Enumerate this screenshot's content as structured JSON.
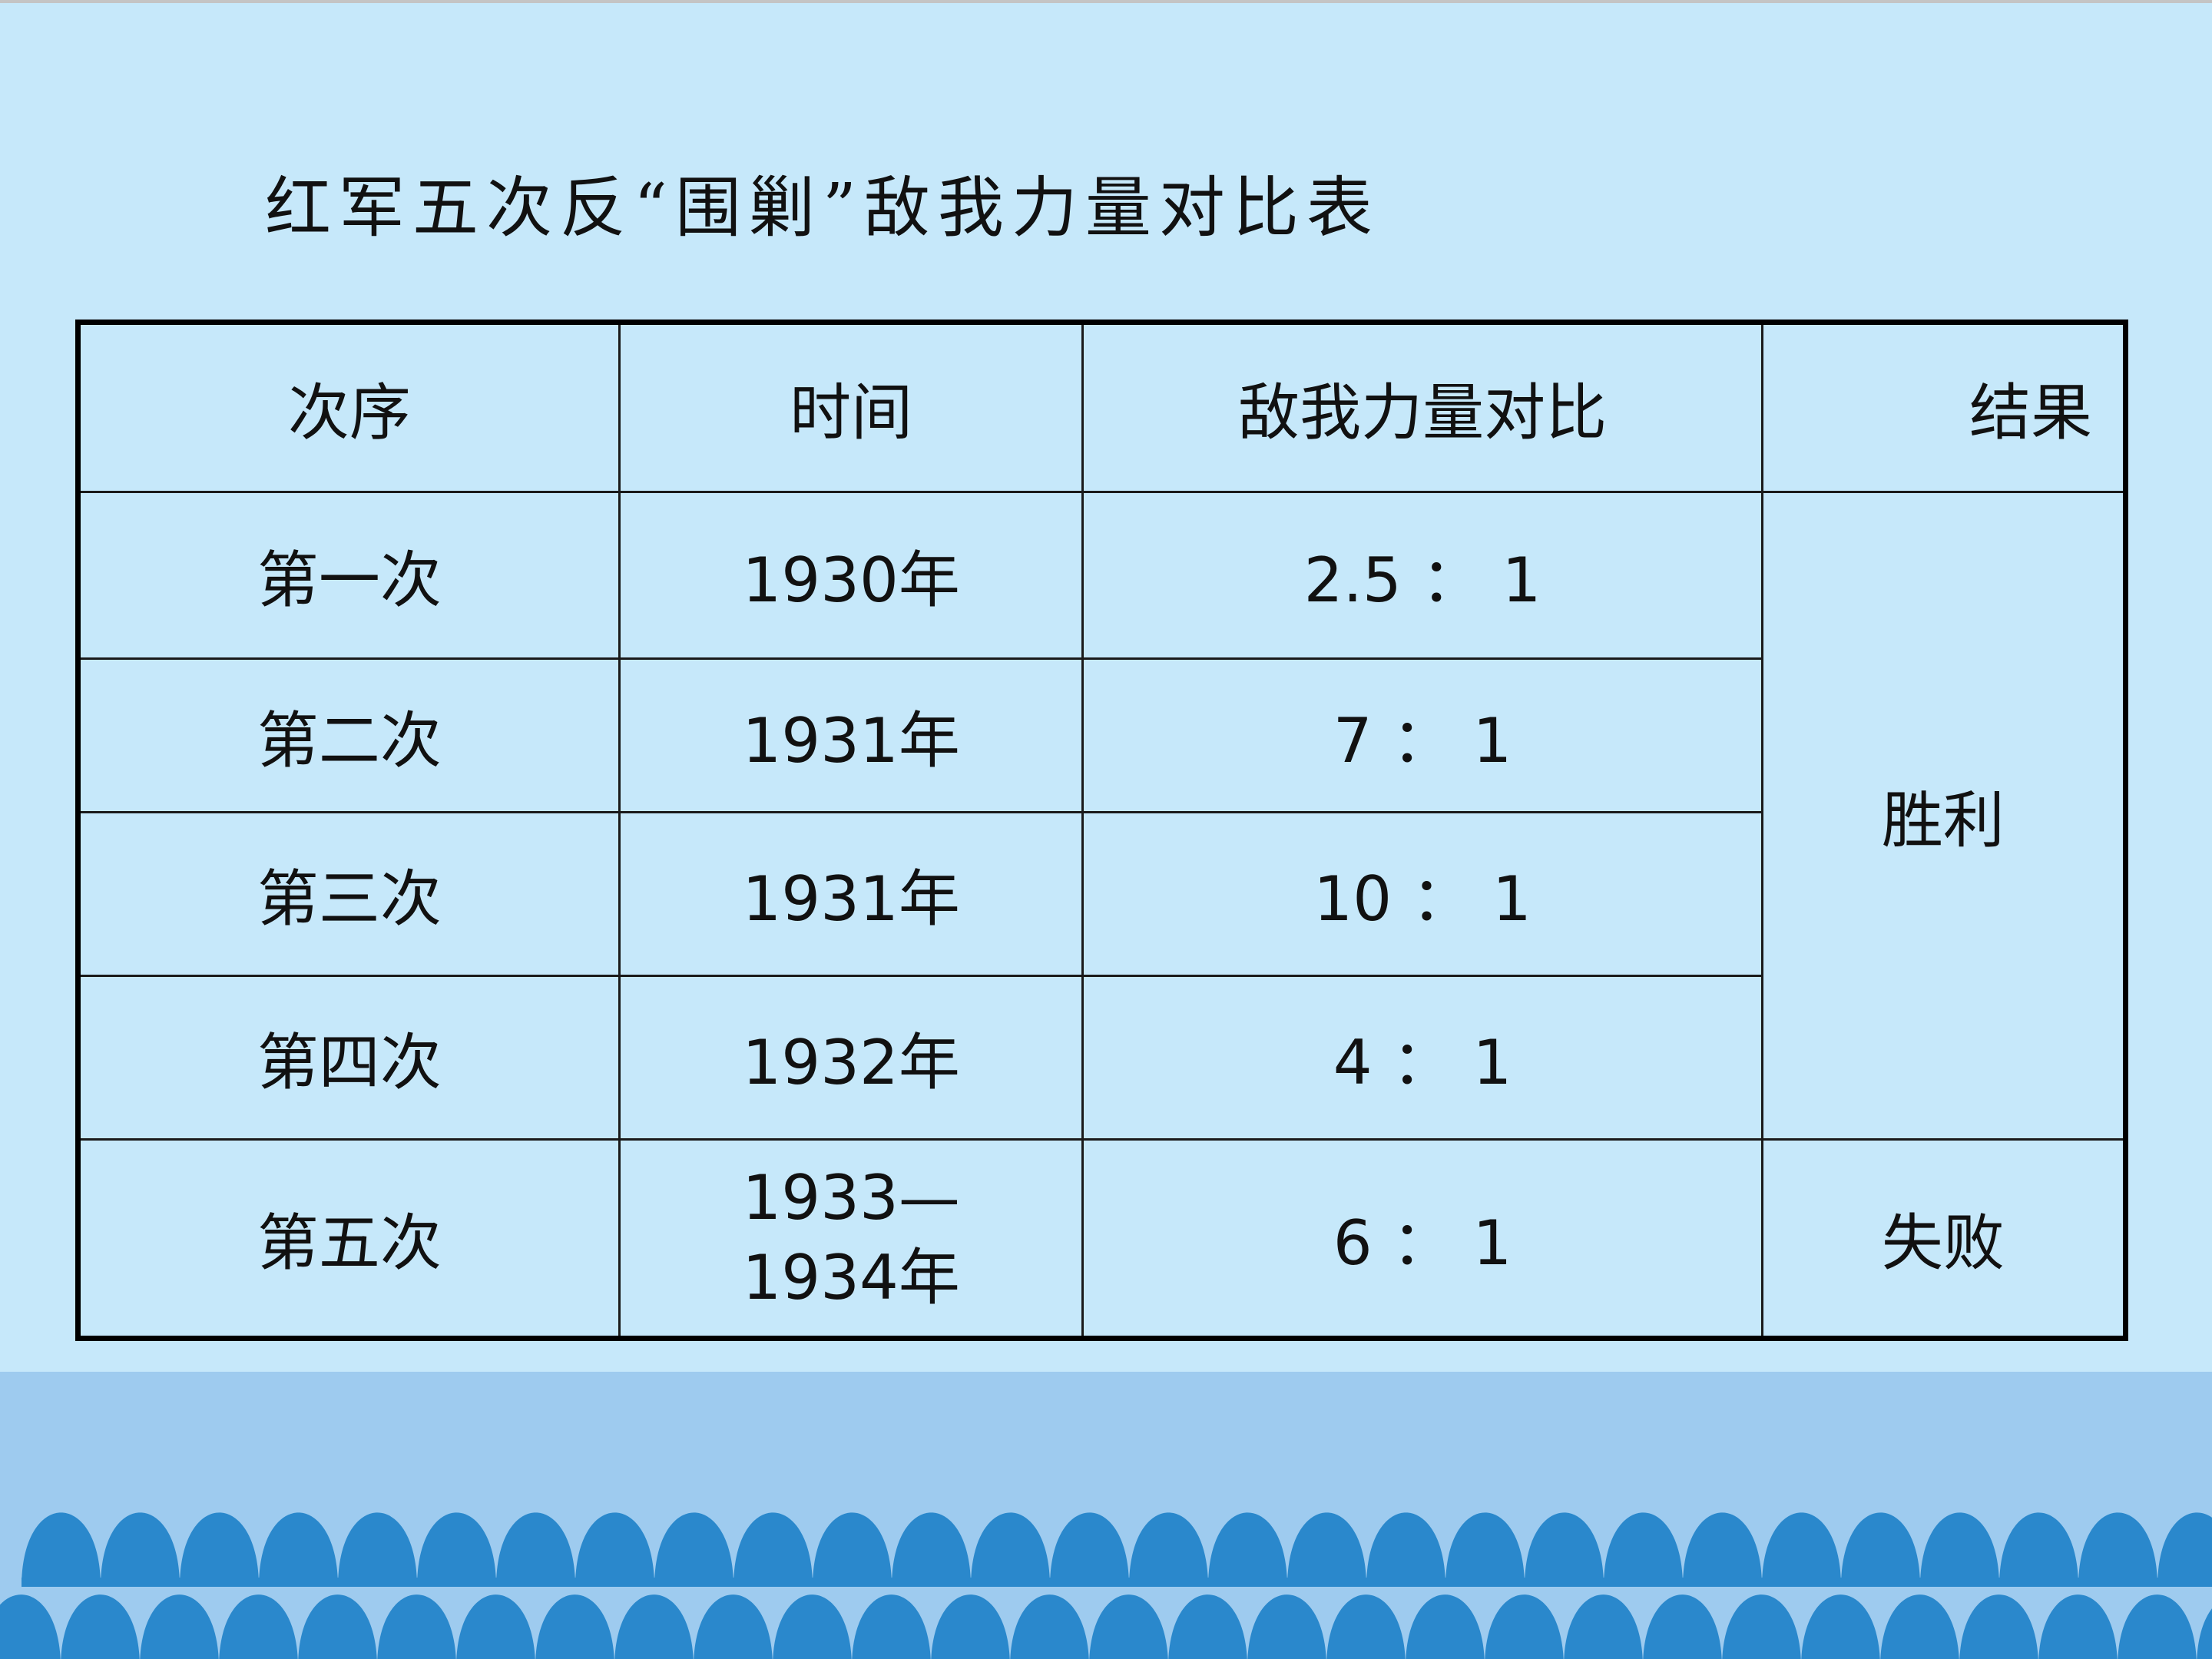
{
  "title": "红军五次反“围剿”敌我力量对比表",
  "table": {
    "headers": [
      "次序",
      "时间",
      "敌我力量对比",
      "结果"
    ],
    "rows": [
      {
        "order": "第一次",
        "time": "1930年",
        "ratio": "2.5 ： 1"
      },
      {
        "order": "第二次",
        "time": "1931年",
        "ratio": "7 ： 1"
      },
      {
        "order": "第三次",
        "time": "1931年",
        "ratio": "10 ： 1"
      },
      {
        "order": "第四次",
        "time": "1932年",
        "ratio": "4 ： 1"
      },
      {
        "order": "第五次",
        "time": "1933—1934年",
        "ratio": "6 ： 1"
      }
    ],
    "results": {
      "victory": "胜利",
      "defeat": "失败"
    }
  },
  "colors": {
    "background": "#c6e8fa",
    "band": "#9ecbef",
    "waves": "#2a88cc"
  }
}
